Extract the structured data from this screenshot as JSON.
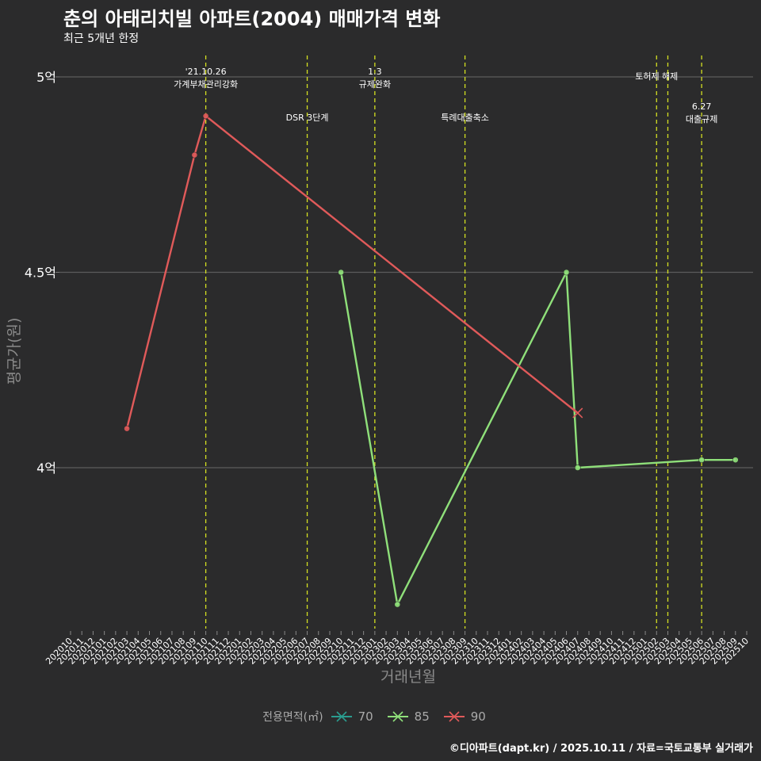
{
  "title": "춘의 아태리치빌 아파트(2004) 매매가격 변화",
  "subtitle": "최근 5개년 한정",
  "caption": "©디아파트(dapt.kr) / 2025.10.11 / 자료=국토교통부 실거래가",
  "legend": {
    "title": "전용면적(㎡)",
    "items": [
      {
        "label": "70",
        "color": "#2a9d8f"
      },
      {
        "label": "85",
        "color": "#8fe07a"
      },
      {
        "label": "90",
        "color": "#e05a5a"
      }
    ]
  },
  "chart_data": {
    "type": "line",
    "xlabel": "거래년월",
    "ylabel": "평균가(원)",
    "x_categories": [
      "202010",
      "202011",
      "202012",
      "202101",
      "202102",
      "202103",
      "202104",
      "202105",
      "202106",
      "202107",
      "202108",
      "202109",
      "202110",
      "202111",
      "202112",
      "202201",
      "202202",
      "202203",
      "202204",
      "202205",
      "202206",
      "202207",
      "202208",
      "202209",
      "202210",
      "202211",
      "202212",
      "202301",
      "202302",
      "202303",
      "202304",
      "202305",
      "202306",
      "202307",
      "202308",
      "202309",
      "202310",
      "202311",
      "202312",
      "202401",
      "202402",
      "202403",
      "202404",
      "202405",
      "202406",
      "202407",
      "202408",
      "202409",
      "202410",
      "202411",
      "202412",
      "202501",
      "202502",
      "202503",
      "202504",
      "202505",
      "202506",
      "202507",
      "202508",
      "202509",
      "202510"
    ],
    "y_ticks": [
      {
        "value": 4.0,
        "label": "4억"
      },
      {
        "value": 4.5,
        "label": "4.5억"
      },
      {
        "value": 5.0,
        "label": "5억"
      }
    ],
    "ylim": [
      3.6,
      5.05
    ],
    "series": [
      {
        "name": "70",
        "color": "#2a9d8f",
        "points": []
      },
      {
        "name": "85",
        "color": "#8fe07a",
        "points": [
          {
            "x": "202210",
            "y": 4.5
          },
          {
            "x": "202303",
            "y": 3.65
          },
          {
            "x": "202406",
            "y": 4.5
          },
          {
            "x": "202407",
            "y": 4.0
          },
          {
            "x": "202506",
            "y": 4.02
          },
          {
            "x": "202509",
            "y": 4.02
          }
        ]
      },
      {
        "name": "90",
        "color": "#e05a5a",
        "points": [
          {
            "x": "202103",
            "y": 4.1
          },
          {
            "x": "202109",
            "y": 4.8
          },
          {
            "x": "202110",
            "y": 4.9
          },
          {
            "x": "202407",
            "y": 4.14,
            "marker": "x"
          }
        ]
      }
    ],
    "events": [
      {
        "x": "202110",
        "lines": [
          "'21.10.26",
          "가계부채관리강화"
        ],
        "row": 0
      },
      {
        "x": "202207",
        "lines": [
          "DSR 3단계"
        ],
        "row": 1
      },
      {
        "x": "202301",
        "lines": [
          "1.3",
          "규제완화"
        ],
        "row": 0
      },
      {
        "x": "202309",
        "lines": [
          "특례대출축소"
        ],
        "row": 1
      },
      {
        "x": "202502",
        "lines": [
          "토허제 해제"
        ],
        "row": 0
      },
      {
        "x": "202503",
        "lines": [],
        "row": 0
      },
      {
        "x": "202506",
        "lines": [
          "6.27",
          "대출규제"
        ],
        "row": 1
      }
    ]
  }
}
